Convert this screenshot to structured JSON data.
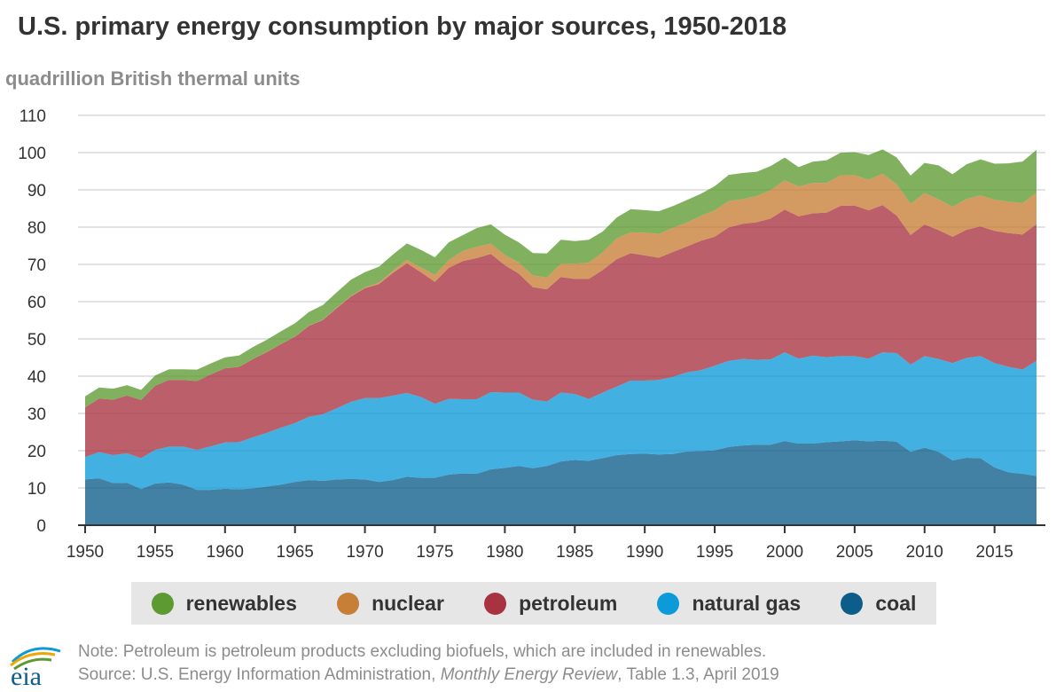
{
  "header": {
    "title": "U.S. primary energy consumption by major sources, 1950-2018",
    "unit_label": "quadrillion British thermal units"
  },
  "legend": {
    "items": [
      {
        "label": "renewables",
        "color": "#5d9b32"
      },
      {
        "label": "nuclear",
        "color": "#c77e36"
      },
      {
        "label": "petroleum",
        "color": "#a83240"
      },
      {
        "label": "natural gas",
        "color": "#0d9ad8"
      },
      {
        "label": "coal",
        "color": "#0d5d8a"
      }
    ]
  },
  "footer": {
    "logo_text": "eia",
    "note": "Note: Petroleum is petroleum products excluding biofuels, which are included in renewables.",
    "source_prefix": "Source: U.S. Energy Information Administration, ",
    "source_title": "Monthly Energy Review",
    "source_suffix": ", Table 1.3, April 2019"
  },
  "chart_data": {
    "type": "area",
    "stacked": true,
    "title": "U.S. primary energy consumption by major sources, 1950-2018",
    "ylabel": "quadrillion British thermal units",
    "xlim": [
      1950,
      2018
    ],
    "ylim": [
      0,
      110
    ],
    "yticks": [
      0,
      10,
      20,
      30,
      40,
      50,
      60,
      70,
      80,
      90,
      100,
      110
    ],
    "xticks": [
      1950,
      1955,
      1960,
      1965,
      1970,
      1975,
      1980,
      1985,
      1990,
      1995,
      2000,
      2005,
      2010,
      2015
    ],
    "grid": "horizontal",
    "legend_position": "bottom",
    "x": [
      1950,
      1951,
      1952,
      1953,
      1954,
      1955,
      1956,
      1957,
      1958,
      1959,
      1960,
      1961,
      1962,
      1963,
      1964,
      1965,
      1966,
      1967,
      1968,
      1969,
      1970,
      1971,
      1972,
      1973,
      1974,
      1975,
      1976,
      1977,
      1978,
      1979,
      1980,
      1981,
      1982,
      1983,
      1984,
      1985,
      1986,
      1987,
      1988,
      1989,
      1990,
      1991,
      1992,
      1993,
      1994,
      1995,
      1996,
      1997,
      1998,
      1999,
      2000,
      2001,
      2002,
      2003,
      2004,
      2005,
      2006,
      2007,
      2008,
      2009,
      2010,
      2011,
      2012,
      2013,
      2014,
      2015,
      2016,
      2017,
      2018
    ],
    "series": [
      {
        "name": "coal",
        "color": "#0d5d8a",
        "values": [
          12.3,
          12.6,
          11.3,
          11.4,
          9.7,
          11.2,
          11.5,
          10.9,
          9.5,
          9.5,
          9.8,
          9.6,
          9.9,
          10.4,
          10.9,
          11.6,
          12.1,
          11.9,
          12.3,
          12.4,
          12.3,
          11.6,
          12.1,
          13.0,
          12.7,
          12.7,
          13.6,
          13.9,
          13.8,
          15.0,
          15.4,
          15.9,
          15.3,
          15.9,
          17.1,
          17.5,
          17.3,
          18.0,
          18.8,
          19.1,
          19.2,
          18.99,
          19.1,
          19.8,
          19.9,
          20.1,
          21.0,
          21.4,
          21.6,
          21.6,
          22.6,
          21.9,
          21.9,
          22.3,
          22.5,
          22.8,
          22.5,
          22.7,
          22.4,
          19.7,
          20.8,
          19.7,
          17.4,
          18.1,
          17.98,
          15.5,
          14.2,
          13.8,
          13.2
        ]
      },
      {
        "name": "natural gas",
        "color": "#0d9ad8",
        "values": [
          6.0,
          7.0,
          7.5,
          7.9,
          8.3,
          9.0,
          9.6,
          10.2,
          10.7,
          11.7,
          12.4,
          12.7,
          13.7,
          14.4,
          15.3,
          15.8,
          17.0,
          17.9,
          19.1,
          20.7,
          21.8,
          22.5,
          22.7,
          22.5,
          21.7,
          19.9,
          20.3,
          19.9,
          20.0,
          20.7,
          20.2,
          19.7,
          18.4,
          17.3,
          18.5,
          17.7,
          16.6,
          17.6,
          18.4,
          19.7,
          19.6,
          20.0,
          20.7,
          21.2,
          21.7,
          22.7,
          23.1,
          23.2,
          22.8,
          22.9,
          23.8,
          22.8,
          23.6,
          22.8,
          22.9,
          22.6,
          22.2,
          23.7,
          23.8,
          23.4,
          24.6,
          24.9,
          26.1,
          26.8,
          27.4,
          28.0,
          28.3,
          28.0,
          30.9
        ]
      },
      {
        "name": "petroleum",
        "color": "#a83240",
        "values": [
          13.3,
          14.4,
          14.9,
          15.5,
          15.6,
          17.2,
          17.9,
          17.9,
          18.5,
          19.3,
          19.9,
          20.2,
          21.0,
          21.7,
          22.4,
          23.2,
          24.4,
          25.3,
          26.9,
          28.3,
          29.5,
          30.6,
          32.9,
          34.8,
          33.5,
          32.7,
          35.2,
          37.1,
          37.9,
          37.1,
          34.2,
          31.9,
          30.2,
          30.1,
          31.0,
          30.9,
          32.2,
          32.9,
          34.2,
          34.2,
          33.6,
          32.8,
          33.5,
          33.8,
          34.7,
          34.6,
          35.8,
          36.3,
          36.9,
          37.8,
          38.3,
          38.2,
          38.2,
          38.8,
          40.3,
          40.4,
          39.8,
          39.5,
          36.9,
          34.8,
          35.3,
          34.6,
          33.9,
          34.4,
          34.8,
          35.5,
          35.9,
          36.2,
          36.7
        ]
      },
      {
        "name": "nuclear",
        "color": "#c77e36",
        "values": [
          0,
          0,
          0,
          0,
          0,
          0,
          0,
          0,
          0,
          0,
          0.01,
          0.02,
          0.03,
          0.04,
          0.04,
          0.04,
          0.06,
          0.09,
          0.14,
          0.15,
          0.24,
          0.41,
          0.58,
          0.91,
          1.27,
          1.9,
          2.11,
          2.7,
          3.02,
          2.78,
          2.74,
          3.01,
          3.13,
          3.2,
          3.55,
          4.08,
          4.38,
          4.75,
          5.59,
          5.6,
          6.1,
          6.4,
          6.5,
          6.4,
          6.7,
          7.1,
          7.1,
          6.6,
          7.07,
          7.6,
          7.86,
          8.03,
          8.14,
          7.96,
          8.22,
          8.16,
          8.21,
          8.46,
          8.43,
          8.36,
          8.43,
          8.27,
          8.06,
          8.27,
          8.33,
          8.34,
          8.43,
          8.42,
          8.44
        ]
      },
      {
        "name": "renewables",
        "color": "#5d9b32",
        "values": [
          2.98,
          2.96,
          2.94,
          2.78,
          2.7,
          2.78,
          2.85,
          2.86,
          3.05,
          2.96,
          2.93,
          3.01,
          3.21,
          3.26,
          3.41,
          3.56,
          3.66,
          3.93,
          4.12,
          4.33,
          4.08,
          4.27,
          4.38,
          4.41,
          4.74,
          4.69,
          4.74,
          4.26,
          5.04,
          5.17,
          5.43,
          5.41,
          6.0,
          6.45,
          6.47,
          6.08,
          6.13,
          5.59,
          5.6,
          6.23,
          6.04,
          6.07,
          5.82,
          6.07,
          5.92,
          6.47,
          7.01,
          7.03,
          6.47,
          6.49,
          6.11,
          5.16,
          5.73,
          6.08,
          6.05,
          6.15,
          6.63,
          6.51,
          7.18,
          7.59,
          8.11,
          9.1,
          8.73,
          9.3,
          9.68,
          9.67,
          10.28,
          11.18,
          11.5
        ]
      }
    ]
  }
}
